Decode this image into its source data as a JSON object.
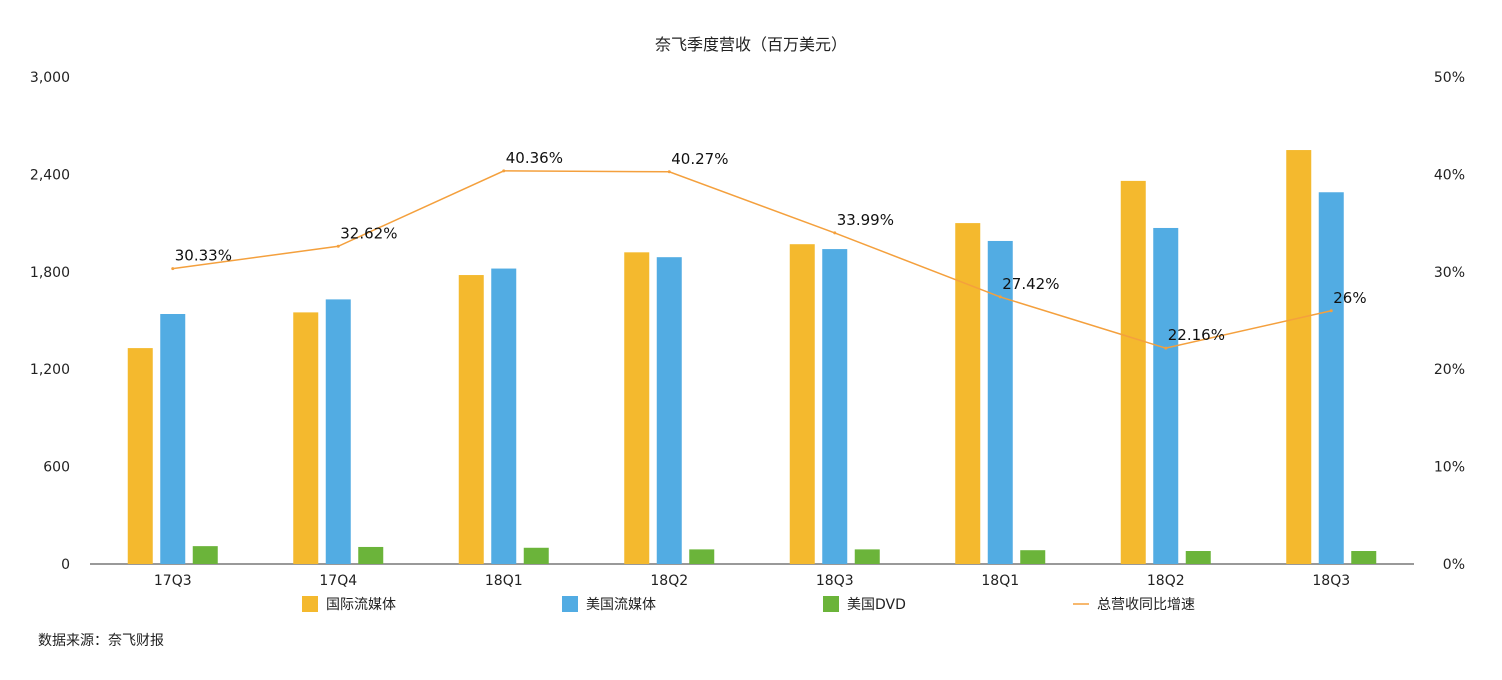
{
  "chart_data": {
    "type": "bar",
    "title": "奈飞季度营收（百万美元）",
    "categories": [
      "17Q3",
      "17Q4",
      "18Q1",
      "18Q2",
      "18Q3",
      "18Q1",
      "18Q2",
      "18Q3"
    ],
    "y_left": {
      "ticks": [
        "0",
        "600",
        "1,200",
        "1,800",
        "2,400",
        "3,000"
      ],
      "min": 0,
      "max": 3000
    },
    "y_right": {
      "ticks": [
        "0%",
        "10%",
        "20%",
        "30%",
        "40%",
        "50%"
      ],
      "min": 0,
      "max": 50
    },
    "series": [
      {
        "name": "国际流媒体",
        "type": "bar",
        "axis": "left",
        "color": "#F4B92E",
        "values": [
          1330,
          1550,
          1780,
          1920,
          1970,
          2100,
          2360,
          2550
        ]
      },
      {
        "name": "美国流媒体",
        "type": "bar",
        "axis": "left",
        "color": "#52ACE3",
        "values": [
          1540,
          1630,
          1820,
          1890,
          1940,
          1990,
          2070,
          2290
        ]
      },
      {
        "name": "美国DVD",
        "type": "bar",
        "axis": "left",
        "color": "#6BB43A",
        "values": [
          110,
          105,
          100,
          90,
          90,
          85,
          80,
          80
        ]
      },
      {
        "name": "总营收同比增速",
        "type": "line",
        "axis": "right",
        "color": "#F4A03D",
        "values": [
          30.33,
          32.62,
          40.36,
          40.27,
          33.99,
          27.42,
          22.16,
          26
        ],
        "labels": [
          "30.33%",
          "32.62%",
          "40.36%",
          "40.27%",
          "33.99%",
          "27.42%",
          "22.16%",
          "26%"
        ]
      }
    ],
    "grid": false,
    "legend_position": "bottom"
  },
  "footer": {
    "source": "数据来源：奈飞财报"
  }
}
